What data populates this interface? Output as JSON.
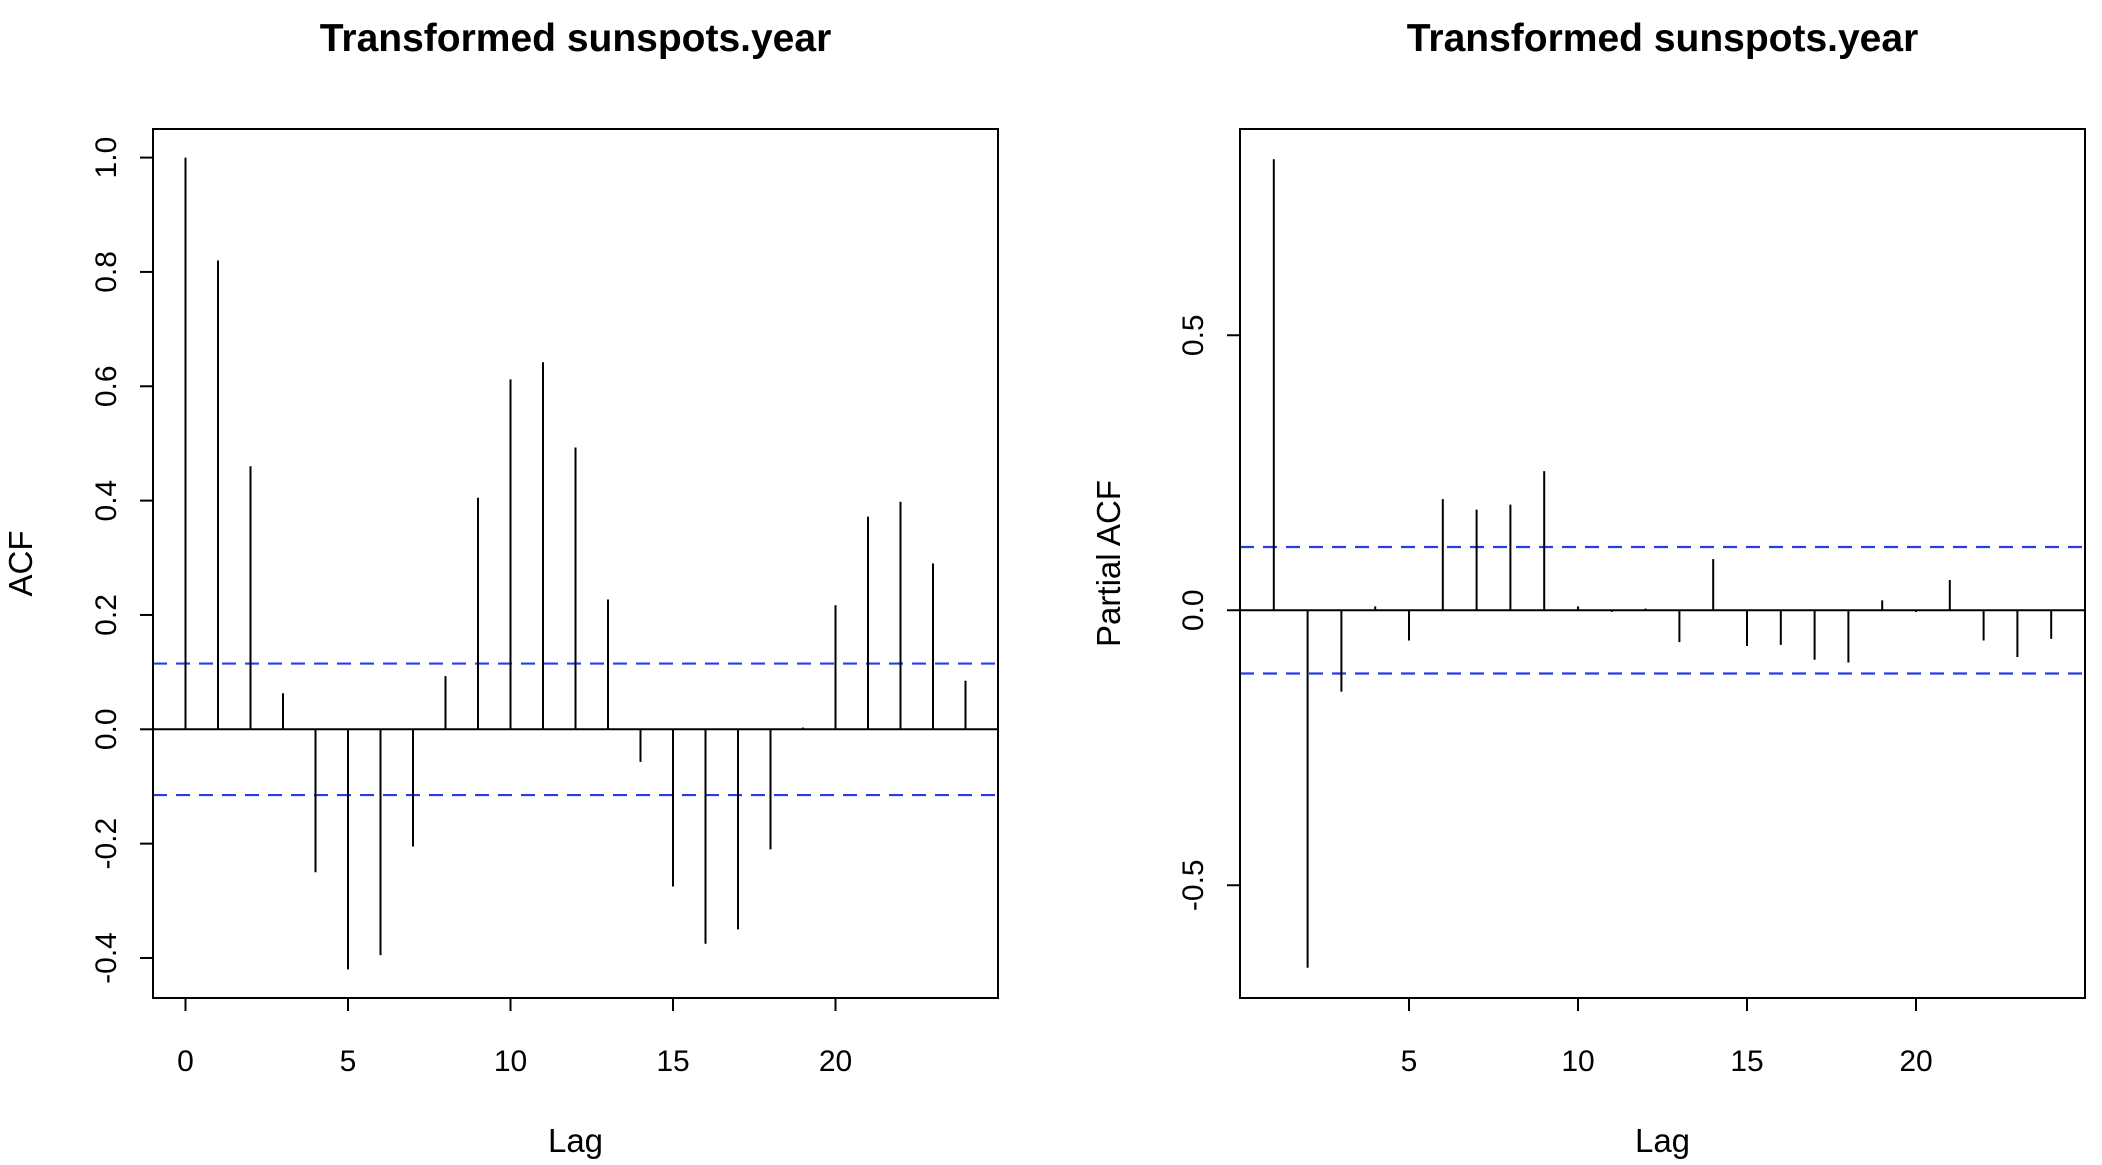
{
  "chart_data": [
    {
      "type": "bar",
      "title": "Transformed sunspots.year",
      "xlabel": "Lag",
      "ylabel": "ACF",
      "xlim": [
        -1,
        25
      ],
      "ylim": [
        -0.47,
        1.05
      ],
      "xticks": [
        0,
        5,
        10,
        15,
        20
      ],
      "xtick_labels": [
        "0",
        "5",
        "10",
        "15",
        "20"
      ],
      "yticks": [
        -0.4,
        -0.2,
        0.0,
        0.2,
        0.4,
        0.6,
        0.8,
        1.0
      ],
      "ytick_labels": [
        "-0.4",
        "-0.2",
        "0.0",
        "0.2",
        "0.4",
        "0.6",
        "0.8",
        "1.0"
      ],
      "lags": [
        0,
        1,
        2,
        3,
        4,
        5,
        6,
        7,
        8,
        9,
        10,
        11,
        12,
        13,
        14,
        15,
        16,
        17,
        18,
        19,
        20,
        21,
        22,
        23,
        24
      ],
      "values": [
        1.0,
        0.82,
        0.46,
        0.063,
        -0.25,
        -0.42,
        -0.395,
        -0.205,
        0.093,
        0.405,
        0.612,
        0.642,
        0.493,
        0.227,
        -0.057,
        -0.275,
        -0.375,
        -0.35,
        -0.21,
        0.003,
        0.217,
        0.372,
        0.398,
        0.29,
        0.085
      ],
      "confidence_bound": 0.115,
      "grid": false
    },
    {
      "type": "bar",
      "title": "Transformed sunspots.year",
      "xlabel": "Lag",
      "ylabel": "Partial ACF",
      "xlim": [
        0,
        25
      ],
      "ylim": [
        -0.705,
        0.875
      ],
      "xticks": [
        5,
        10,
        15,
        20
      ],
      "xtick_labels": [
        "5",
        "10",
        "15",
        "20"
      ],
      "yticks": [
        -0.5,
        0.0,
        0.5
      ],
      "ytick_labels": [
        "-0.5",
        "0.0",
        "0.5"
      ],
      "lags": [
        1,
        2,
        3,
        4,
        5,
        6,
        7,
        8,
        9,
        10,
        11,
        12,
        13,
        14,
        15,
        16,
        17,
        18,
        19,
        20,
        21,
        22,
        23,
        24
      ],
      "values": [
        0.82,
        -0.65,
        -0.148,
        0.007,
        -0.055,
        0.202,
        0.183,
        0.192,
        0.253,
        0.007,
        -0.003,
        0.003,
        -0.058,
        0.093,
        -0.065,
        -0.063,
        -0.09,
        -0.095,
        0.018,
        -0.003,
        0.055,
        -0.055,
        -0.085,
        -0.052
      ],
      "confidence_bound": 0.115,
      "grid": false
    }
  ]
}
